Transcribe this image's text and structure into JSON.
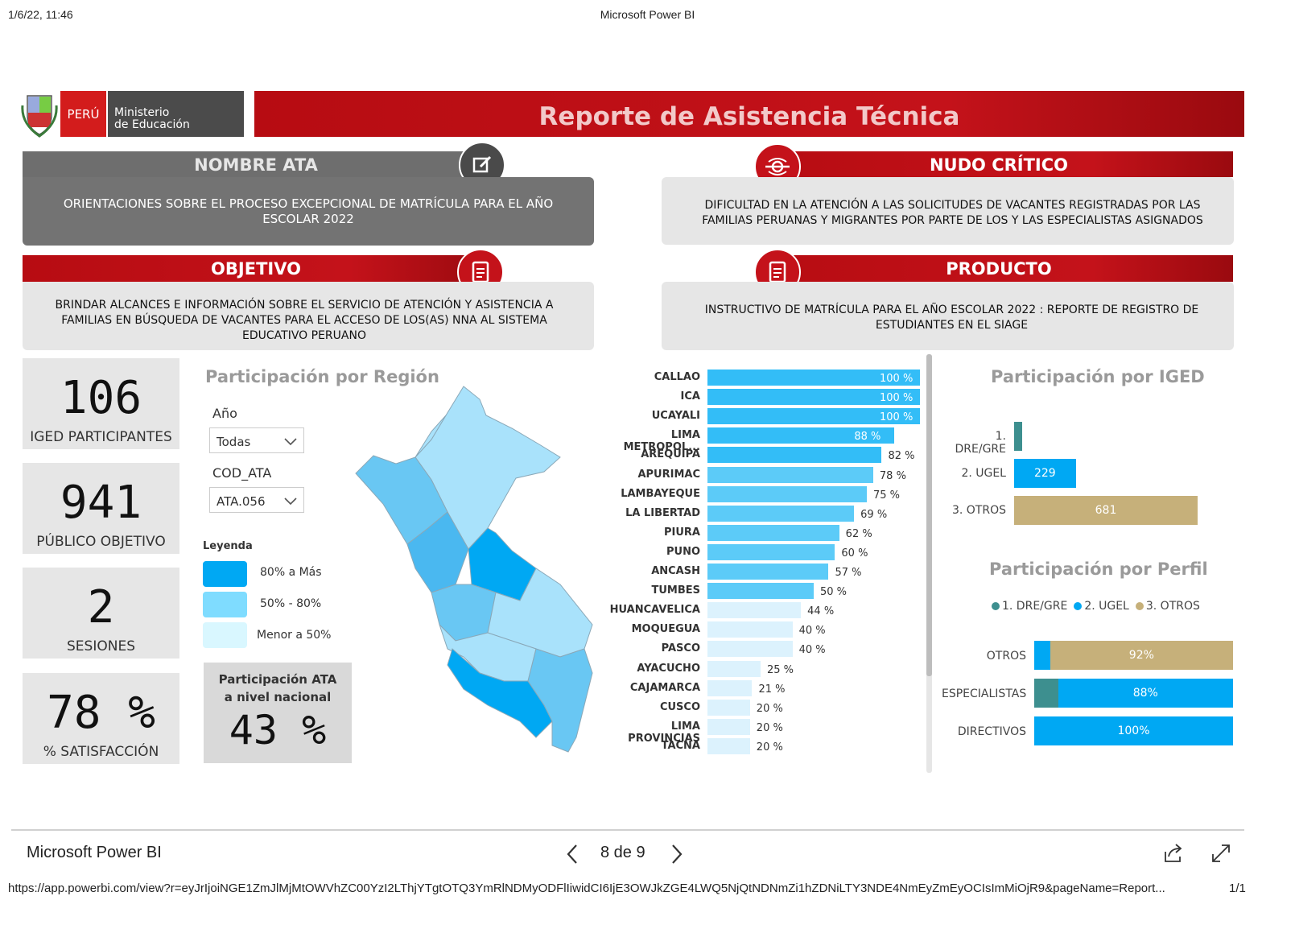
{
  "print_header": {
    "datetime": "1/6/22, 11:46",
    "title": "Microsoft Power BI"
  },
  "logo": {
    "country": "PERÚ",
    "ministry_line1": "Ministerio",
    "ministry_line2": "de Educación"
  },
  "report_title": "Reporte de Asistencia Técnica",
  "sections": {
    "nombre_ata": {
      "title": "NOMBRE ATA",
      "text": "ORIENTACIONES SOBRE EL PROCESO EXCEPCIONAL DE MATRÍCULA PARA EL AÑO ESCOLAR 2022"
    },
    "nudo_critico": {
      "title": "NUDO CRÍTICO",
      "text": "DIFICULTAD EN LA ATENCIÓN A LAS SOLICITUDES DE VACANTES REGISTRADAS POR LAS FAMILIAS PERUANAS Y MIGRANTES POR PARTE DE LOS Y LAS ESPECIALISTAS ASIGNADOS"
    },
    "objetivo": {
      "title": "OBJETIVO",
      "text": "BRINDAR ALCANCES E INFORMACIÓN SOBRE EL SERVICIO DE ATENCIÓN Y ASISTENCIA A FAMILIAS EN BÚSQUEDA DE VACANTES PARA EL ACCESO DE LOS(AS) NNA AL SISTEMA EDUCATIVO PERUANO"
    },
    "producto": {
      "title": "PRODUCTO",
      "text": "INSTRUCTIVO DE MATRÍCULA PARA EL AÑO ESCOLAR 2022 : REPORTE DE REGISTRO DE ESTUDIANTES EN EL SIAGE"
    }
  },
  "kpis": [
    {
      "value": "106",
      "label": "IGED PARTICIPANTES"
    },
    {
      "value": "941",
      "label": "PÚBLICO OBJETIVO"
    },
    {
      "value": "2",
      "label": "SESIONES"
    },
    {
      "value": "78 %",
      "label": "% SATISFACCIÓN"
    }
  ],
  "region_panel": {
    "title": "Participación por Región",
    "filters": [
      {
        "label": "Año",
        "value": "Todas"
      },
      {
        "label": "COD_ATA",
        "value": "ATA.056"
      }
    ],
    "legend_title": "Leyenda",
    "legend": [
      {
        "label": "80% a Más",
        "color": "#00a8f3"
      },
      {
        "label": "50% - 80%",
        "color": "#7fdcff"
      },
      {
        "label": "Menor a 50%",
        "color": "#d9f7ff"
      }
    ],
    "national": {
      "label_line1": "Participación ATA",
      "label_line2": "a nivel nacional",
      "value": "43 %"
    }
  },
  "chart_data": [
    {
      "type": "bar",
      "orientation": "horizontal",
      "categories": [
        "CALLAO",
        "ICA",
        "UCAYALI",
        "LIMA METROPOL...",
        "AREQUIPA",
        "APURIMAC",
        "LAMBAYEQUE",
        "LA LIBERTAD",
        "PIURA",
        "PUNO",
        "ANCASH",
        "TUMBES",
        "HUANCAVELICA",
        "MOQUEGUA",
        "PASCO",
        "AYACUCHO",
        "CAJAMARCA",
        "CUSCO",
        "LIMA PROVINCIAS",
        "TACNA"
      ],
      "values": [
        100,
        100,
        100,
        88,
        82,
        78,
        75,
        69,
        62,
        60,
        57,
        50,
        44,
        40,
        40,
        25,
        21,
        20,
        20,
        20
      ],
      "labels": [
        "100 %",
        "100 %",
        "100 %",
        "88 %",
        "82 %",
        "78 %",
        "75 %",
        "69 %",
        "62 %",
        "60 %",
        "57 %",
        "50 %",
        "44 %",
        "40 %",
        "40 %",
        "25 %",
        "21 %",
        "20 %",
        "20 %",
        "20 %"
      ],
      "xlim": [
        0,
        100
      ]
    },
    {
      "type": "bar",
      "orientation": "horizontal",
      "title": "Participación por IGED",
      "categories": [
        "1. DRE/GRE",
        "2. UGEL",
        "3. OTROS"
      ],
      "values": [
        31,
        229,
        681
      ],
      "labels": [
        "",
        "229",
        "681"
      ],
      "colors": [
        "#3d8f8f",
        "#00a8f3",
        "#c6b07a"
      ]
    },
    {
      "type": "bar",
      "orientation": "horizontal",
      "stacked": "100%",
      "title": "Participación por Perfil",
      "legend_position": "top",
      "categories": [
        "OTROS",
        "ESPECIALISTAS",
        "DIRECTIVOS"
      ],
      "series": [
        {
          "name": "1. DRE/GRE",
          "color": "#3d8f8f",
          "values": [
            0,
            12,
            0
          ]
        },
        {
          "name": "2. UGEL",
          "color": "#00a8f3",
          "values": [
            8,
            88,
            100
          ]
        },
        {
          "name": "3. OTROS",
          "color": "#c6b07a",
          "values": [
            92,
            0,
            0
          ]
        }
      ],
      "labels": {
        "OTROS": "92%",
        "ESPECIALISTAS": "88%",
        "DIRECTIVOS": "100%"
      }
    }
  ],
  "footer": {
    "app_name": "Microsoft Power BI",
    "page": "8 de 9",
    "url": "https://app.powerbi.com/view?r=eyJrIjoiNGE1ZmJlMjMtOWVhZC00YzI2LThjYTgtOTQ3YmRlNDMyODFlIiwidCI6IjE3OWJkZGE4LWQ5NjQtNDNmZi1hZDNiLTY3NDE4NmEyZmEyOCIsImMiOjR9&pageName=Report...",
    "print_page": "1/1"
  }
}
